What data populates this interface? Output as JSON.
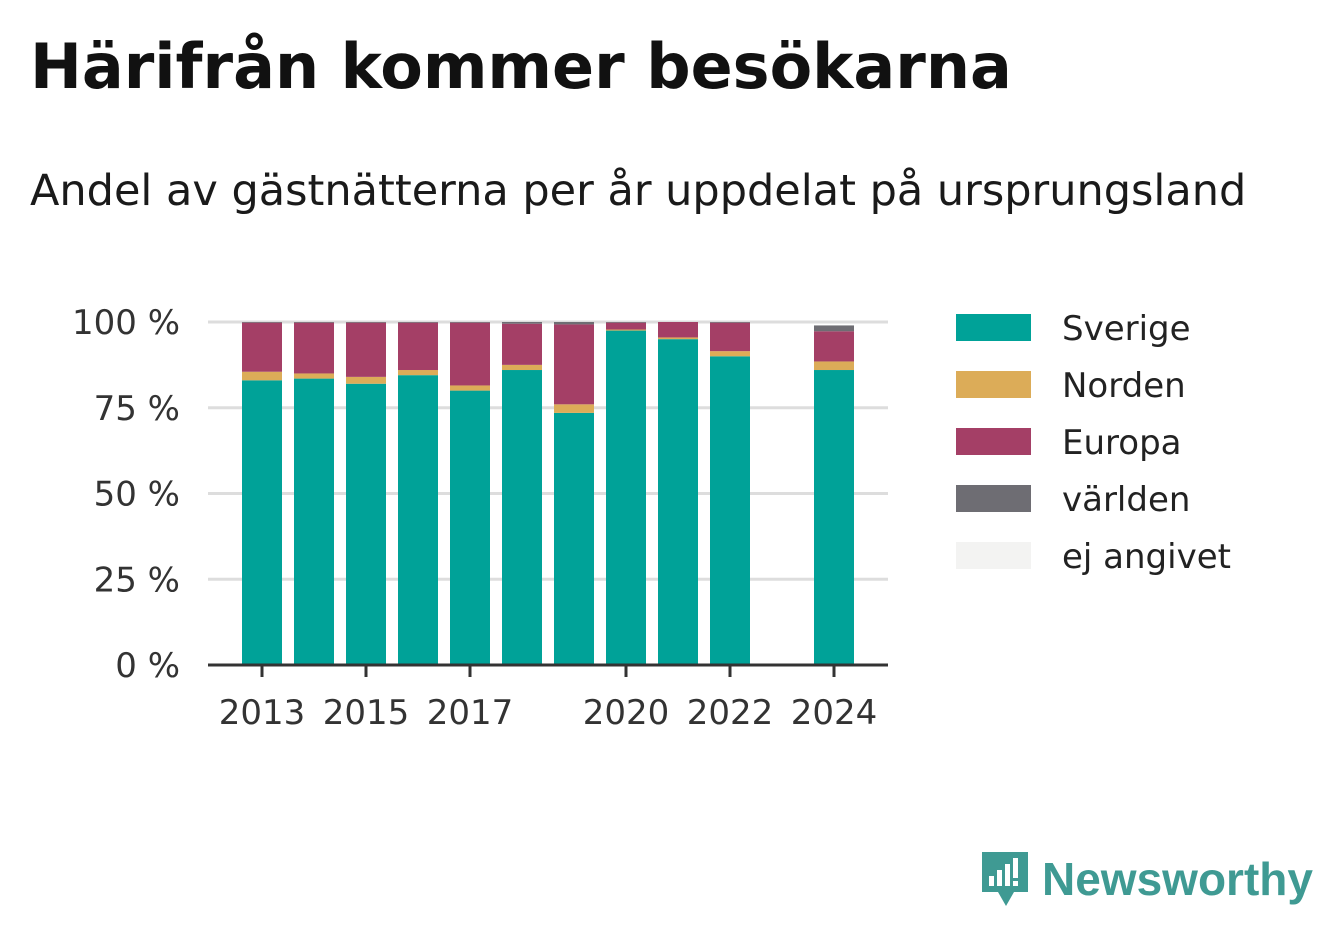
{
  "header": {
    "title": "Härifrån kommer besökarna",
    "subtitle": "Andel av gästnätterna per år uppdelat på ursprungsland"
  },
  "logo": {
    "text": "Newsworthy",
    "icon": "newsworthy-logo-icon"
  },
  "chart_data": {
    "type": "bar",
    "stacked": true,
    "title": "Härifrån kommer besökarna",
    "subtitle": "Andel av gästnätterna per år uppdelat på ursprungsland",
    "categories": [
      "2013",
      "2014",
      "2015",
      "2016",
      "2017",
      "2018",
      "2019",
      "2020",
      "2021",
      "2022",
      "2023",
      "2024"
    ],
    "xticks": [
      "2013",
      "2015",
      "2017",
      "2020",
      "2022",
      "2024"
    ],
    "yticks": [
      0,
      25,
      50,
      75,
      100
    ],
    "ytick_labels": [
      "0 %",
      "25 %",
      "50 %",
      "75 %",
      "100 %"
    ],
    "ylim": [
      0,
      100
    ],
    "grid": true,
    "legend": "right",
    "series": [
      {
        "name": "Sverige",
        "color": "#00a298",
        "values": [
          83,
          83.5,
          82,
          84.5,
          80,
          86,
          73.5,
          97.5,
          95,
          90,
          null,
          86
        ]
      },
      {
        "name": "Norden",
        "color": "#dcac58",
        "values": [
          2.5,
          1.5,
          2,
          1.5,
          1.5,
          1.5,
          2.5,
          0.3,
          0.5,
          1.5,
          null,
          2.5
        ]
      },
      {
        "name": "Europa",
        "color": "#a43f66",
        "values": [
          14.3,
          14.8,
          15.8,
          13.8,
          18.3,
          12,
          23.3,
          2,
          4.5,
          8.3,
          null,
          8.8
        ]
      },
      {
        "name": "världen",
        "color": "#6e6d73",
        "values": [
          0.2,
          0.2,
          0.2,
          0.2,
          0.2,
          0.5,
          0.7,
          0.2,
          0,
          0.2,
          null,
          1.7
        ]
      },
      {
        "name": "ej angivet",
        "color": "#f3f3f2",
        "values": [
          0,
          0,
          0,
          0,
          0,
          0,
          0,
          0,
          0,
          0,
          null,
          0
        ]
      }
    ]
  }
}
